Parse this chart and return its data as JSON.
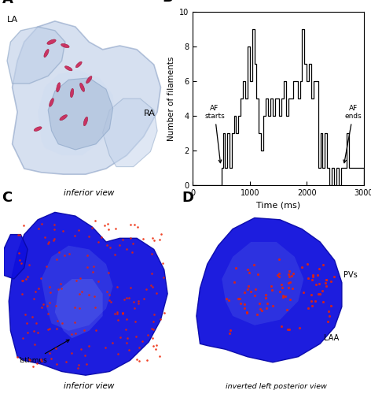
{
  "bg_color": "#ffffff",
  "panel_label_fontsize": 13,
  "heart_A_color": "#a8bcd8",
  "heart_A_edge": "#8090b0",
  "heart_C_color": "#1515dd",
  "heart_D_color": "#1515dd",
  "filament_color": "#cc2255",
  "dot_color": "#ee2200",
  "plot_B": {
    "xlabel": "Time (ms)",
    "ylabel": "Number of filaments",
    "xlim": [
      0,
      3000
    ],
    "ylim": [
      0,
      10
    ],
    "yticks": [
      0,
      2,
      4,
      6,
      8,
      10
    ],
    "xticks": [
      0,
      1000,
      2000,
      3000
    ]
  }
}
